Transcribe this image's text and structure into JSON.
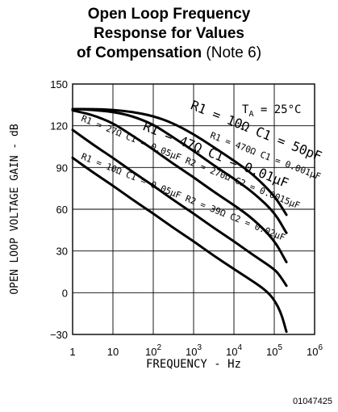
{
  "chart_data": {
    "type": "line",
    "title_lines": [
      "Open Loop Frequency",
      "Response for Values",
      "of Compensation"
    ],
    "title_note": "(Note 6)",
    "xlabel": "FREQUENCY - Hz",
    "ylabel": "OPEN LOOP VOLTAGE GAIN - dB",
    "x_scale": "log",
    "xlim": [
      1,
      1000000
    ],
    "ylim": [
      -30,
      150
    ],
    "x_ticks": [
      {
        "value": 1,
        "label": "1"
      },
      {
        "value": 10,
        "label": "10"
      },
      {
        "value": 100,
        "label": "10",
        "exp": "2"
      },
      {
        "value": 1000,
        "label": "10",
        "exp": "3"
      },
      {
        "value": 10000,
        "label": "10",
        "exp": "4"
      },
      {
        "value": 100000,
        "label": "10",
        "exp": "5"
      },
      {
        "value": 1000000,
        "label": "10",
        "exp": "6"
      }
    ],
    "y_ticks": [
      150,
      120,
      90,
      60,
      30,
      0,
      -30
    ],
    "grid": true,
    "annotation": {
      "text": "T",
      "sub": "A",
      "rest": " = 25°C"
    },
    "series": [
      {
        "label": "R1 = 10Ω C1 = 50pF",
        "x": [
          1,
          3,
          10,
          30,
          100,
          300,
          1000,
          3000,
          10000,
          30000,
          100000,
          200000
        ],
        "y": [
          132,
          132,
          131.5,
          130,
          127,
          122,
          114,
          105,
          95,
          85,
          70,
          56
        ]
      },
      {
        "label": "R1 = 470Ω C1 = 0.001μF",
        "x": [
          1,
          3,
          10,
          30,
          100,
          300,
          1000,
          3000,
          10000,
          30000,
          100000,
          200000
        ],
        "y": [
          132,
          131.5,
          130,
          127,
          121,
          112,
          102,
          92,
          82,
          72,
          58,
          43
        ]
      },
      {
        "label": "R1 = 47Ω C1 = 0.01μF",
        "x": [
          1,
          3,
          10,
          30,
          100,
          300,
          1000,
          3000,
          10000,
          30000,
          100000,
          200000
        ],
        "y": [
          131,
          128,
          122,
          113,
          103,
          93,
          83,
          73,
          63,
          53,
          38,
          22
        ]
      },
      {
        "label": "R1 = 27Ω C1 = 0.05μF R2 = 270Ω C2 = 0.0015μF",
        "x": [
          1,
          3,
          10,
          30,
          100,
          300,
          1000,
          3000,
          10000,
          30000,
          100000,
          140000,
          200000
        ],
        "y": [
          117,
          107,
          97,
          87,
          77,
          67,
          57,
          47,
          37,
          27,
          17,
          12,
          5
        ]
      },
      {
        "label": "R1 = 10Ω C1 = 0.05μF R2 = 39Ω C2 = 0.02μF",
        "x": [
          1,
          3,
          10,
          30,
          100,
          300,
          1000,
          3000,
          10000,
          30000,
          60000,
          100000,
          150000,
          200000
        ],
        "y": [
          97,
          87,
          77,
          67,
          57,
          47,
          37,
          27,
          17,
          8,
          2,
          -5,
          -15,
          -28
        ]
      }
    ]
  },
  "figure_id": "01047425"
}
